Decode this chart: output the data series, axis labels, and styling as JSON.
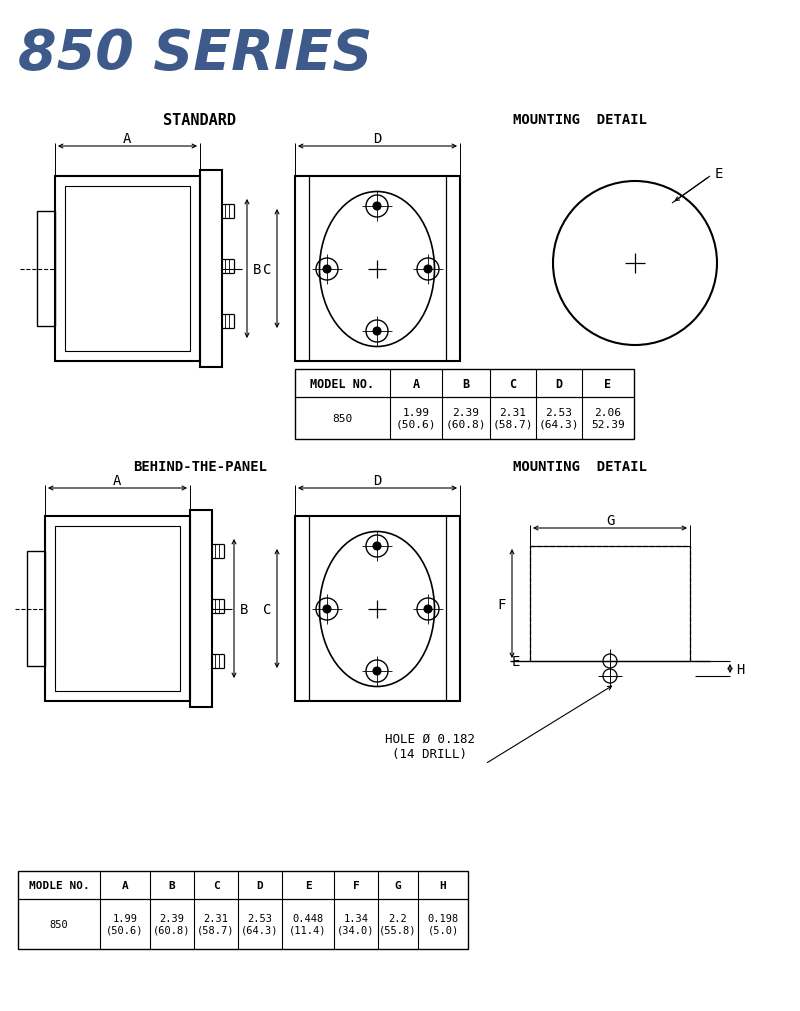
{
  "title": "850 SERIES",
  "title_color": "#3d5a8a",
  "bg_color": "#ffffff",
  "section1_label": "STANDARD",
  "section2_label": "BEHIND-THE-PANEL",
  "mounting_label": "MOUNTING  DETAIL",
  "table1_headers": [
    "MODEL NO.",
    "A",
    "B",
    "C",
    "D",
    "E"
  ],
  "table1_row": [
    "850",
    "1.99\n(50.6)",
    "2.39\n(60.8)",
    "2.31\n(58.7)",
    "2.53\n(64.3)",
    "2.06\n52.39"
  ],
  "table2_headers": [
    "MODLE NO.",
    "A",
    "B",
    "C",
    "D",
    "E",
    "F",
    "G",
    "H"
  ],
  "table2_row": [
    "850",
    "1.99\n(50.6)",
    "2.39\n(60.8)",
    "2.31\n(58.7)",
    "2.53\n(64.3)",
    "0.448\n(11.4)",
    "1.34\n(34.0)",
    "2.2\n(55.8)",
    "0.198\n(5.0)"
  ],
  "hole_label": "HOLE Ø 0.182\n(14 DRILL)"
}
